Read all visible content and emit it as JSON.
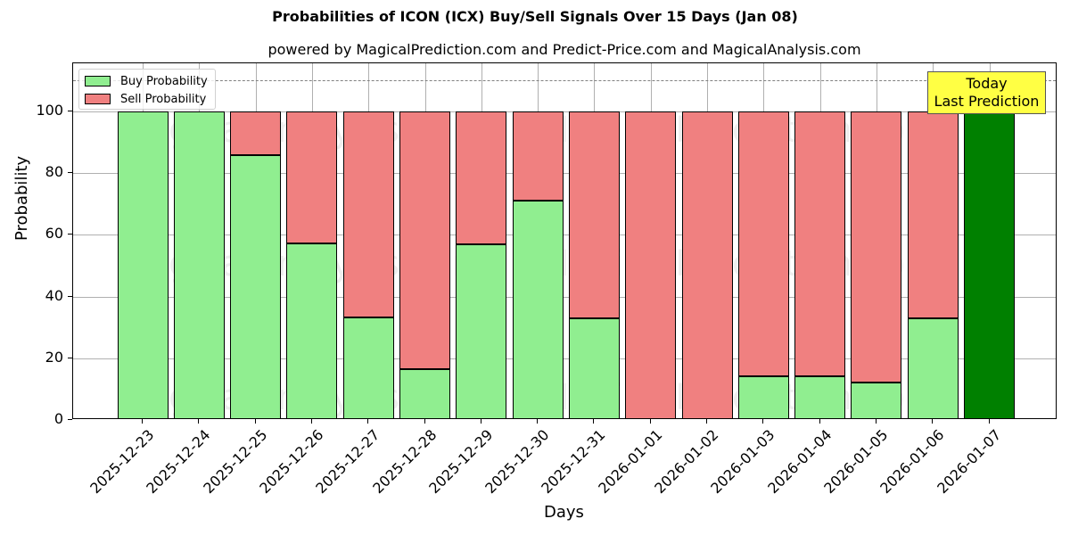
{
  "chart_data": {
    "type": "bar",
    "stacked": true,
    "title": "Probabilities of ICON (ICX) Buy/Sell Signals Over 15 Days (Jan 08)",
    "subtitle": "powered by MagicalPrediction.com and Predict-Price.com and MagicalAnalysis.com",
    "xlabel": "Days",
    "ylabel": "Probability",
    "ylim": [
      0,
      115.6
    ],
    "yticks": [
      0,
      20,
      40,
      60,
      80,
      100
    ],
    "grid": true,
    "legend_position": "upper left",
    "categories": [
      "2025-12-23",
      "2025-12-24",
      "2025-12-25",
      "2025-12-26",
      "2025-12-27",
      "2025-12-28",
      "2025-12-29",
      "2025-12-30",
      "2025-12-31",
      "2026-01-01",
      "2026-01-02",
      "2026-01-03",
      "2026-01-04",
      "2026-01-05",
      "2026-01-06",
      "2026-01-07"
    ],
    "series": [
      {
        "name": "Buy Probability",
        "color": "#90ee90",
        "values": [
          100,
          100,
          85.7,
          57.1,
          33.3,
          16.6,
          57.0,
          71.1,
          33.0,
          0,
          0,
          14.2,
          14.2,
          12.0,
          33.0,
          100
        ]
      },
      {
        "name": "Sell Probability",
        "color": "#f08080",
        "values": [
          0,
          0,
          14.3,
          42.9,
          66.7,
          83.4,
          43.0,
          28.9,
          67.0,
          100,
          100,
          85.8,
          85.8,
          88.0,
          67.0,
          0
        ]
      }
    ],
    "highlight": {
      "category": "2026-01-07",
      "color": "#008000",
      "label": "Today\nLast Prediction"
    },
    "reference_line": {
      "y": 110,
      "style": "dashed",
      "color": "#808080"
    },
    "annotation": {
      "line1": "Today",
      "line2": "Last Prediction",
      "background": "#ffff44"
    },
    "watermarks": [
      "MagicalAnalysis.com",
      "MagicalPrediction.com"
    ]
  },
  "legend": {
    "buy_label": "Buy Probability",
    "sell_label": "Sell Probability"
  },
  "colors": {
    "buy": "#90ee90",
    "sell": "#f08080",
    "today": "#008000",
    "annotation_bg": "#ffff44"
  }
}
